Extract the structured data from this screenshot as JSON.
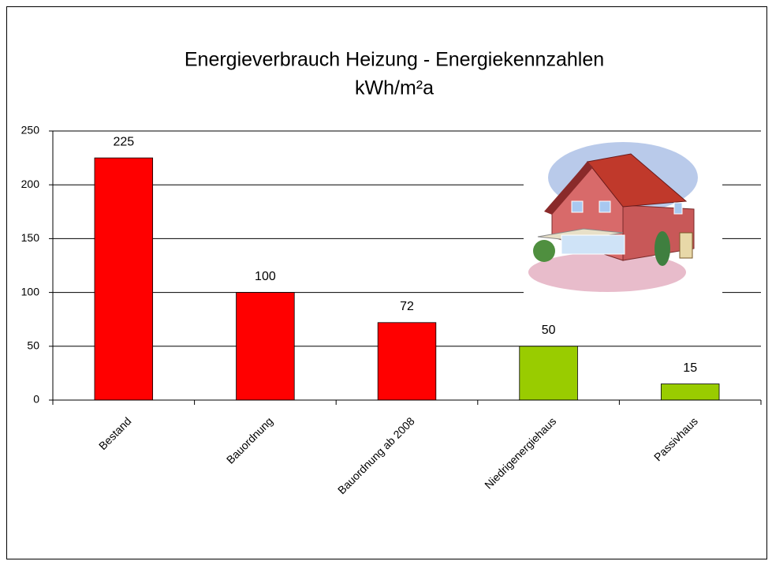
{
  "chart_data": {
    "type": "bar",
    "title": "Energieverbrauch Heizung - Energiekennzahlen",
    "subtitle": "kWh/m²a",
    "categories": [
      "Bestand",
      "Bauordnung",
      "Bauordnung ab 2008",
      "Niedrigenergiehaus",
      "Passivhaus"
    ],
    "values": [
      225,
      100,
      72,
      50,
      15
    ],
    "colors": [
      "#ff0000",
      "#ff0000",
      "#ff0000",
      "#99cc00",
      "#99cc00"
    ],
    "ylim": [
      0,
      250
    ],
    "yticks": [
      0,
      50,
      100,
      150,
      200,
      250
    ],
    "grid": true
  }
}
